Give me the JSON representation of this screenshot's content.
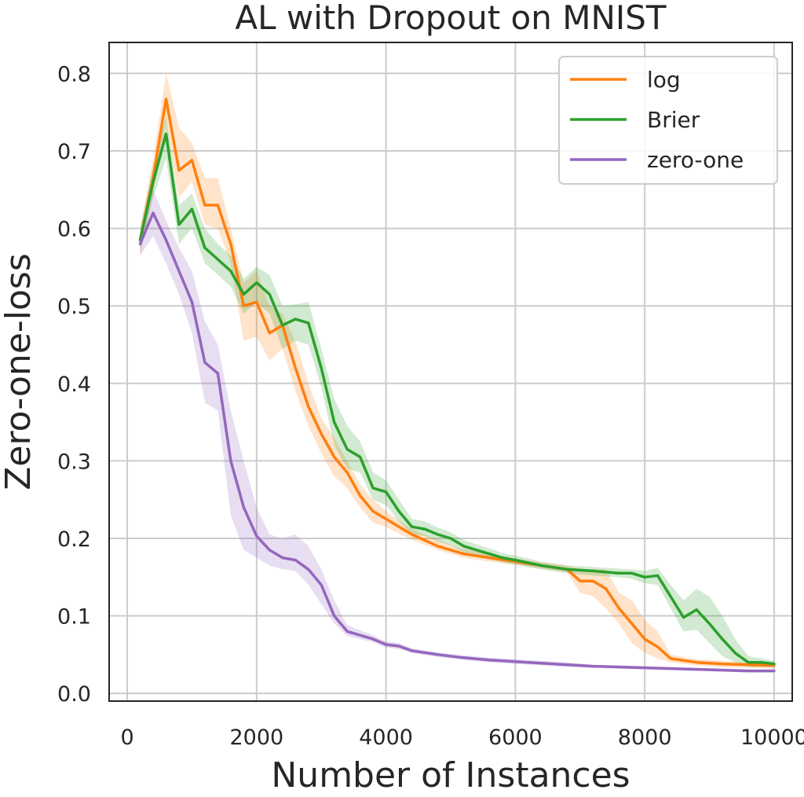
{
  "chart_data": {
    "type": "line",
    "title": "AL with Dropout on MNIST",
    "xlabel": "Number of Instances",
    "ylabel": "Zero-one-loss",
    "xlim": [
      -280,
      10280
    ],
    "ylim": [
      -0.01,
      0.84
    ],
    "xticks": [
      0,
      2000,
      4000,
      6000,
      8000,
      10000
    ],
    "xtick_labels": [
      "0",
      "2000",
      "4000",
      "6000",
      "8000",
      "10000"
    ],
    "yticks": [
      0.0,
      0.1,
      0.2,
      0.3,
      0.4,
      0.5,
      0.6,
      0.7,
      0.8
    ],
    "ytick_labels": [
      "0.0",
      "0.1",
      "0.2",
      "0.3",
      "0.4",
      "0.5",
      "0.6",
      "0.7",
      "0.8"
    ],
    "grid": true,
    "legend_position": "top-right",
    "series": [
      {
        "name": "log",
        "color": "#ff7f0e",
        "x": [
          200,
          400,
          600,
          800,
          1000,
          1200,
          1400,
          1600,
          1800,
          2000,
          2200,
          2400,
          2600,
          2800,
          3000,
          3200,
          3400,
          3600,
          3800,
          4000,
          4400,
          4800,
          5200,
          5600,
          6000,
          6400,
          6800,
          7000,
          7200,
          7400,
          7600,
          7800,
          8000,
          8200,
          8400,
          8800,
          9200,
          9600,
          10000
        ],
        "values": [
          0.585,
          0.665,
          0.767,
          0.675,
          0.688,
          0.63,
          0.63,
          0.58,
          0.5,
          0.505,
          0.465,
          0.475,
          0.42,
          0.37,
          0.335,
          0.305,
          0.285,
          0.255,
          0.235,
          0.225,
          0.205,
          0.19,
          0.18,
          0.175,
          0.17,
          0.165,
          0.16,
          0.145,
          0.145,
          0.135,
          0.11,
          0.09,
          0.07,
          0.06,
          0.045,
          0.04,
          0.038,
          0.037,
          0.036
        ],
        "lower": [
          0.565,
          0.645,
          0.735,
          0.64,
          0.66,
          0.605,
          0.6,
          0.555,
          0.455,
          0.46,
          0.43,
          0.445,
          0.39,
          0.345,
          0.31,
          0.28,
          0.265,
          0.24,
          0.22,
          0.215,
          0.198,
          0.185,
          0.175,
          0.17,
          0.166,
          0.161,
          0.156,
          0.13,
          0.125,
          0.11,
          0.09,
          0.065,
          0.052,
          0.045,
          0.04,
          0.036,
          0.034,
          0.033,
          0.032
        ],
        "upper": [
          0.6,
          0.69,
          0.8,
          0.73,
          0.71,
          0.665,
          0.665,
          0.6,
          0.53,
          0.545,
          0.5,
          0.49,
          0.455,
          0.4,
          0.355,
          0.33,
          0.3,
          0.27,
          0.25,
          0.235,
          0.212,
          0.198,
          0.186,
          0.18,
          0.174,
          0.169,
          0.165,
          0.16,
          0.16,
          0.16,
          0.13,
          0.12,
          0.095,
          0.08,
          0.05,
          0.044,
          0.042,
          0.04,
          0.039
        ]
      },
      {
        "name": "Brier",
        "color": "#2ca02c",
        "x": [
          200,
          400,
          600,
          800,
          1000,
          1200,
          1400,
          1600,
          1800,
          2000,
          2200,
          2400,
          2600,
          2800,
          3000,
          3200,
          3400,
          3600,
          3800,
          4000,
          4200,
          4400,
          4600,
          4800,
          5000,
          5200,
          5400,
          5600,
          5800,
          6000,
          6400,
          6800,
          7200,
          7600,
          7800,
          8000,
          8200,
          8400,
          8600,
          8800,
          9000,
          9200,
          9400,
          9600,
          9800,
          10000
        ],
        "values": [
          0.585,
          0.66,
          0.722,
          0.605,
          0.625,
          0.575,
          0.56,
          0.545,
          0.515,
          0.53,
          0.515,
          0.475,
          0.483,
          0.478,
          0.42,
          0.35,
          0.315,
          0.305,
          0.265,
          0.26,
          0.235,
          0.215,
          0.212,
          0.205,
          0.2,
          0.19,
          0.185,
          0.18,
          0.175,
          0.172,
          0.165,
          0.16,
          0.158,
          0.155,
          0.155,
          0.15,
          0.152,
          0.125,
          0.098,
          0.108,
          0.09,
          0.07,
          0.052,
          0.04,
          0.04,
          0.038
        ],
        "lower": [
          0.57,
          0.64,
          0.69,
          0.58,
          0.6,
          0.555,
          0.54,
          0.525,
          0.49,
          0.505,
          0.49,
          0.445,
          0.455,
          0.45,
          0.395,
          0.32,
          0.29,
          0.285,
          0.25,
          0.243,
          0.222,
          0.205,
          0.203,
          0.196,
          0.191,
          0.182,
          0.178,
          0.173,
          0.169,
          0.166,
          0.16,
          0.155,
          0.152,
          0.15,
          0.148,
          0.142,
          0.14,
          0.11,
          0.08,
          0.082,
          0.065,
          0.048,
          0.04,
          0.034,
          0.034,
          0.034
        ],
        "upper": [
          0.6,
          0.68,
          0.745,
          0.63,
          0.645,
          0.6,
          0.58,
          0.565,
          0.535,
          0.55,
          0.54,
          0.5,
          0.502,
          0.505,
          0.445,
          0.38,
          0.345,
          0.325,
          0.285,
          0.275,
          0.25,
          0.225,
          0.222,
          0.214,
          0.208,
          0.198,
          0.192,
          0.187,
          0.181,
          0.178,
          0.17,
          0.165,
          0.163,
          0.161,
          0.16,
          0.158,
          0.162,
          0.14,
          0.12,
          0.135,
          0.125,
          0.1,
          0.07,
          0.048,
          0.045,
          0.042
        ]
      },
      {
        "name": "zero-one",
        "color": "#9467bd",
        "x": [
          200,
          400,
          600,
          800,
          1000,
          1200,
          1400,
          1600,
          1800,
          2000,
          2200,
          2400,
          2600,
          2800,
          3000,
          3200,
          3400,
          3800,
          4000,
          4200,
          4400,
          4800,
          5200,
          5600,
          6000,
          6400,
          6800,
          7200,
          7600,
          8000,
          8400,
          8800,
          9200,
          9600,
          10000
        ],
        "values": [
          0.58,
          0.62,
          0.585,
          0.545,
          0.505,
          0.427,
          0.413,
          0.3,
          0.24,
          0.203,
          0.185,
          0.175,
          0.172,
          0.16,
          0.14,
          0.1,
          0.08,
          0.07,
          0.063,
          0.061,
          0.055,
          0.05,
          0.046,
          0.043,
          0.041,
          0.039,
          0.037,
          0.035,
          0.034,
          0.033,
          0.032,
          0.031,
          0.03,
          0.029,
          0.029
        ],
        "lower": [
          0.565,
          0.59,
          0.555,
          0.515,
          0.465,
          0.375,
          0.365,
          0.23,
          0.185,
          0.175,
          0.165,
          0.16,
          0.158,
          0.14,
          0.115,
          0.09,
          0.074,
          0.066,
          0.059,
          0.057,
          0.052,
          0.047,
          0.043,
          0.04,
          0.038,
          0.036,
          0.034,
          0.033,
          0.032,
          0.031,
          0.03,
          0.029,
          0.028,
          0.027,
          0.027
        ],
        "upper": [
          0.595,
          0.65,
          0.61,
          0.575,
          0.545,
          0.48,
          0.45,
          0.365,
          0.3,
          0.24,
          0.205,
          0.2,
          0.205,
          0.19,
          0.16,
          0.12,
          0.088,
          0.075,
          0.067,
          0.065,
          0.058,
          0.053,
          0.049,
          0.046,
          0.044,
          0.042,
          0.04,
          0.037,
          0.036,
          0.035,
          0.034,
          0.033,
          0.032,
          0.031,
          0.031
        ]
      }
    ]
  }
}
